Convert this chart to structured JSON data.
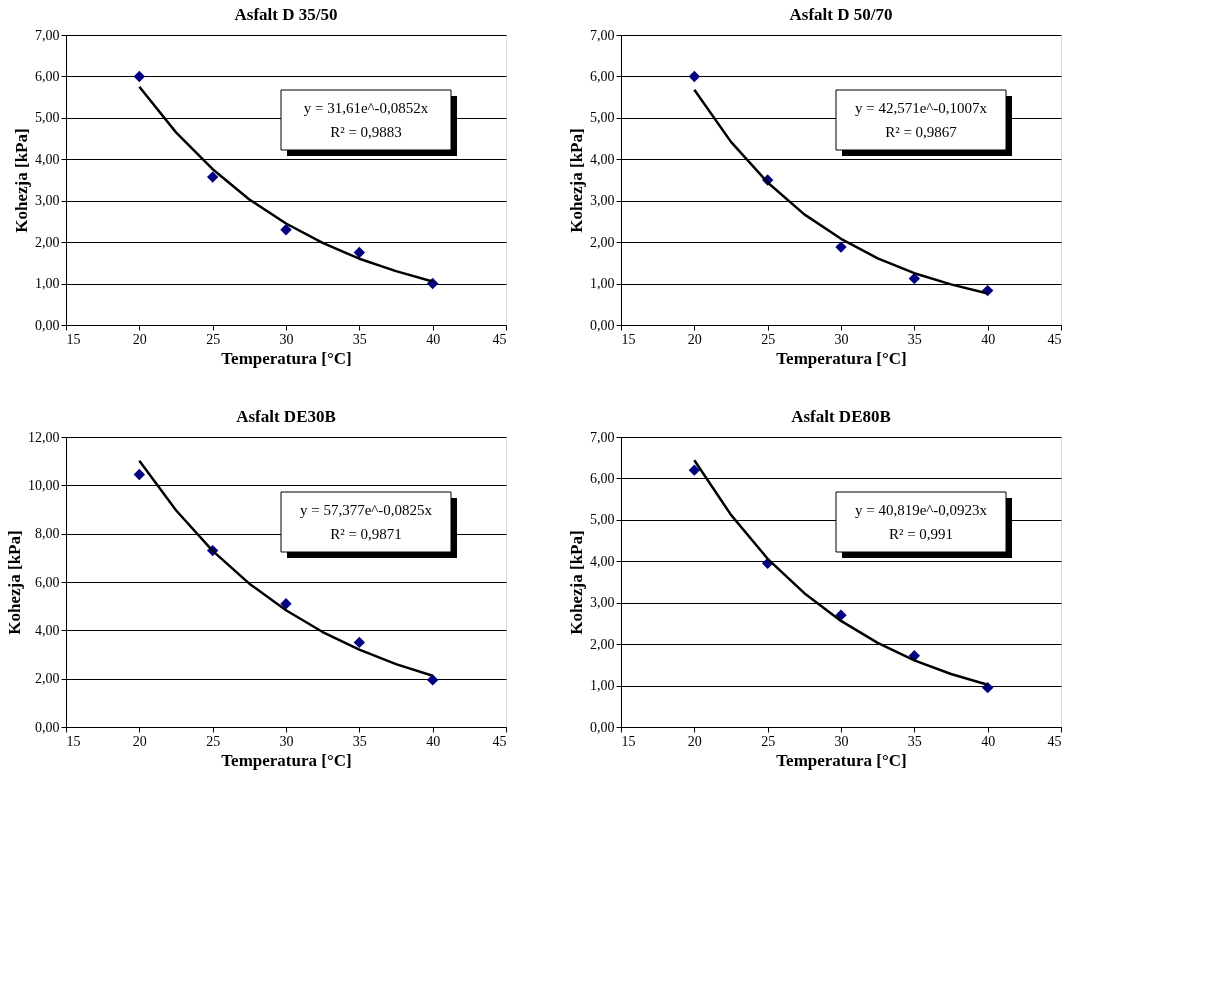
{
  "chart_data": [
    {
      "type": "scatter",
      "title": "Asfalt D 35/50",
      "xlabel": "Temperatura [°C]",
      "ylabel": "Kohezja [kPa]",
      "xlim": [
        15,
        45
      ],
      "xticks": [
        15,
        20,
        25,
        30,
        35,
        40,
        45
      ],
      "ylim": [
        0,
        7
      ],
      "yticks": [
        {
          "value": 0,
          "label": "0,00"
        },
        {
          "value": 1,
          "label": "1,00"
        },
        {
          "value": 2,
          "label": "2,00"
        },
        {
          "value": 3,
          "label": "3,00"
        },
        {
          "value": 4,
          "label": "4,00"
        },
        {
          "value": 5,
          "label": "5,00"
        },
        {
          "value": 6,
          "label": "6,00"
        },
        {
          "value": 7,
          "label": "7,00"
        }
      ],
      "grid": "y",
      "annotations": [
        "y = 31,61e^-0,0852x",
        "R² = 0,9883"
      ],
      "series": [
        {
          "marker": "diamond",
          "color": "#000080",
          "x": [
            20,
            25,
            30,
            35,
            40
          ],
          "values": [
            6.0,
            3.57,
            2.3,
            1.75,
            1.0
          ]
        },
        {
          "type": "line",
          "marker": "none",
          "line_style": "solid",
          "color": "#000000",
          "x": [
            20,
            22.5,
            25,
            27.5,
            30,
            32.5,
            35,
            37.5,
            40
          ],
          "values": [
            5.75,
            4.65,
            3.76,
            3.03,
            2.45,
            1.98,
            1.6,
            1.3,
            1.05
          ]
        }
      ]
    },
    {
      "type": "scatter",
      "title": "Asfalt D 50/70",
      "xlabel": "Temperatura [°C]",
      "ylabel": "Kohezja [kPa]",
      "xlim": [
        15,
        45
      ],
      "xticks": [
        15,
        20,
        25,
        30,
        35,
        40,
        45
      ],
      "ylim": [
        0,
        7
      ],
      "yticks": [
        {
          "value": 0,
          "label": "0,00"
        },
        {
          "value": 1,
          "label": "1,00"
        },
        {
          "value": 2,
          "label": "2,00"
        },
        {
          "value": 3,
          "label": "3,00"
        },
        {
          "value": 4,
          "label": "4,00"
        },
        {
          "value": 5,
          "label": "5,00"
        },
        {
          "value": 6,
          "label": "6,00"
        },
        {
          "value": 7,
          "label": "7,00"
        }
      ],
      "grid": "y",
      "annotations": [
        "y = 42,571e^-0,1007x",
        "R² = 0,9867"
      ],
      "series": [
        {
          "marker": "diamond",
          "color": "#000080",
          "x": [
            20,
            25,
            30,
            35,
            40
          ],
          "values": [
            6.0,
            3.5,
            1.88,
            1.12,
            0.83
          ]
        },
        {
          "type": "line",
          "marker": "none",
          "line_style": "solid",
          "color": "#000000",
          "x": [
            20,
            22.5,
            25,
            27.5,
            30,
            32.5,
            35,
            37.5,
            40
          ],
          "values": [
            5.68,
            4.42,
            3.44,
            2.67,
            2.08,
            1.61,
            1.25,
            0.98,
            0.76
          ]
        }
      ]
    },
    {
      "type": "scatter",
      "title": "Asfalt DE30B",
      "xlabel": "Temperatura [°C]",
      "ylabel": "Kohezja [kPa]",
      "xlim": [
        15,
        45
      ],
      "xticks": [
        15,
        20,
        25,
        30,
        35,
        40,
        45
      ],
      "ylim": [
        0,
        12
      ],
      "yticks": [
        {
          "value": 0,
          "label": "0,00"
        },
        {
          "value": 2,
          "label": "2,00"
        },
        {
          "value": 4,
          "label": "4,00"
        },
        {
          "value": 6,
          "label": "6,00"
        },
        {
          "value": 8,
          "label": "8,00"
        },
        {
          "value": 10,
          "label": "10,00"
        },
        {
          "value": 12,
          "label": "12,00"
        }
      ],
      "grid": "y",
      "annotations": [
        "y = 57,377e^-0,0825x",
        "R² = 0,9871"
      ],
      "series": [
        {
          "marker": "diamond",
          "color": "#000080",
          "x": [
            20,
            25,
            30,
            35,
            40
          ],
          "values": [
            10.45,
            7.3,
            5.1,
            3.5,
            1.95
          ]
        },
        {
          "type": "line",
          "marker": "none",
          "line_style": "solid",
          "color": "#000000",
          "x": [
            20,
            22.5,
            25,
            27.5,
            30,
            32.5,
            35,
            37.5,
            40
          ],
          "values": [
            11.02,
            8.97,
            7.29,
            5.93,
            4.83,
            3.93,
            3.2,
            2.6,
            2.12
          ]
        }
      ]
    },
    {
      "type": "scatter",
      "title": "Asfalt DE80B",
      "xlabel": "Temperatura [°C]",
      "ylabel": "Kohezja [kPa]",
      "xlim": [
        15,
        45
      ],
      "xticks": [
        15,
        20,
        25,
        30,
        35,
        40,
        45
      ],
      "ylim": [
        0,
        7
      ],
      "yticks": [
        {
          "value": 0,
          "label": "0,00"
        },
        {
          "value": 1,
          "label": "1,00"
        },
        {
          "value": 2,
          "label": "2,00"
        },
        {
          "value": 3,
          "label": "3,00"
        },
        {
          "value": 4,
          "label": "4,00"
        },
        {
          "value": 5,
          "label": "5,00"
        },
        {
          "value": 6,
          "label": "6,00"
        },
        {
          "value": 7,
          "label": "7,00"
        }
      ],
      "grid": "y",
      "annotations": [
        "y = 40,819e^-0,0923x",
        "R² = 0,991"
      ],
      "series": [
        {
          "marker": "diamond",
          "color": "#000080",
          "x": [
            20,
            25,
            30,
            35,
            40
          ],
          "values": [
            6.2,
            3.95,
            2.7,
            1.72,
            0.95
          ]
        },
        {
          "type": "line",
          "marker": "none",
          "line_style": "solid",
          "color": "#000000",
          "x": [
            20,
            22.5,
            25,
            27.5,
            30,
            32.5,
            35,
            37.5,
            40
          ],
          "values": [
            6.44,
            5.12,
            4.06,
            3.23,
            2.56,
            2.03,
            1.61,
            1.28,
            1.02
          ]
        }
      ]
    }
  ]
}
